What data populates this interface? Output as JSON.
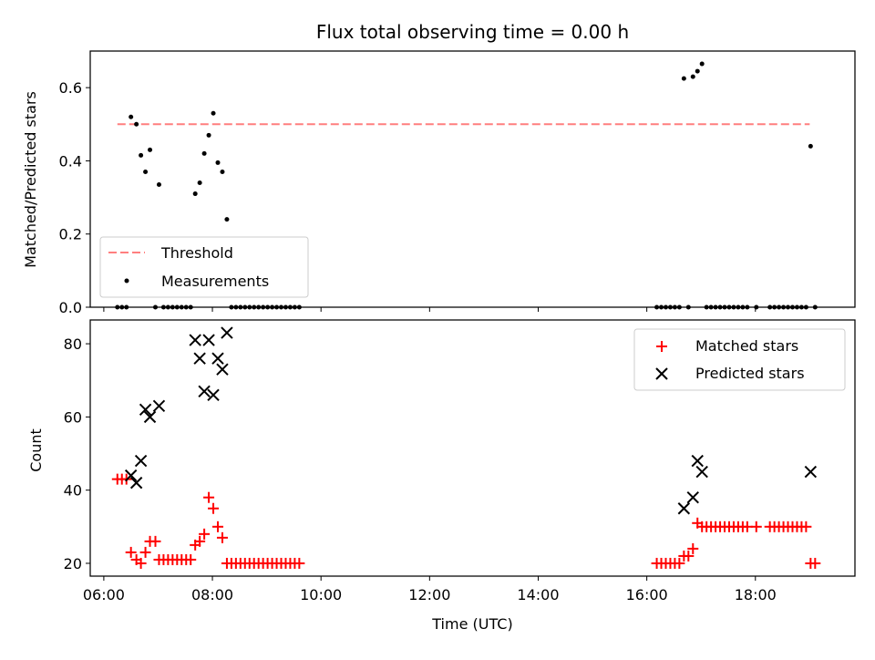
{
  "chart_data": [
    {
      "type": "scatter",
      "title": "Flux total observing time = 0.00 h",
      "xlabel": "",
      "ylabel": "Matched/Predicted stars",
      "xlim": [
        "05:45",
        "19:50"
      ],
      "ylim": [
        0,
        0.7
      ],
      "yticks": [
        "0.0",
        "0.2",
        "0.4",
        "0.6"
      ],
      "legend": {
        "placement": "lower-left",
        "entries": [
          "Threshold",
          "Measurements"
        ]
      },
      "threshold": {
        "name": "Threshold",
        "value": 0.5,
        "x_range": [
          "06:15",
          "19:00"
        ],
        "color": "#ff7f7f"
      },
      "series": [
        {
          "name": "Measurements",
          "color": "#000000",
          "points": [
            [
              "06:15",
              0
            ],
            [
              "06:20",
              0
            ],
            [
              "06:25",
              0
            ],
            [
              "06:30",
              0.52
            ],
            [
              "06:36",
              0.5
            ],
            [
              "06:41",
              0.415
            ],
            [
              "06:46",
              0.37
            ],
            [
              "06:51",
              0.43
            ],
            [
              "06:57",
              0
            ],
            [
              "07:01",
              0.335
            ],
            [
              "07:06",
              0
            ],
            [
              "07:11",
              0
            ],
            [
              "07:16",
              0
            ],
            [
              "07:21",
              0
            ],
            [
              "07:26",
              0
            ],
            [
              "07:31",
              0
            ],
            [
              "07:36",
              0
            ],
            [
              "07:41",
              0.31
            ],
            [
              "07:46",
              0.34
            ],
            [
              "07:51",
              0.42
            ],
            [
              "07:56",
              0.47
            ],
            [
              "08:01",
              0.53
            ],
            [
              "08:06",
              0.395
            ],
            [
              "08:11",
              0.37
            ],
            [
              "08:16",
              0.24
            ],
            [
              "08:21",
              0
            ],
            [
              "08:26",
              0
            ],
            [
              "08:31",
              0
            ],
            [
              "08:36",
              0
            ],
            [
              "08:41",
              0
            ],
            [
              "08:46",
              0
            ],
            [
              "08:51",
              0
            ],
            [
              "08:56",
              0
            ],
            [
              "09:01",
              0
            ],
            [
              "09:06",
              0
            ],
            [
              "09:11",
              0
            ],
            [
              "09:16",
              0
            ],
            [
              "09:21",
              0
            ],
            [
              "09:26",
              0
            ],
            [
              "09:31",
              0
            ],
            [
              "09:36",
              0
            ],
            [
              "16:11",
              0
            ],
            [
              "16:16",
              0
            ],
            [
              "16:21",
              0
            ],
            [
              "16:26",
              0
            ],
            [
              "16:31",
              0
            ],
            [
              "16:36",
              0
            ],
            [
              "16:41",
              0.625
            ],
            [
              "16:46",
              0
            ],
            [
              "16:51",
              0.63
            ],
            [
              "16:56",
              0.645
            ],
            [
              "17:01",
              0.665
            ],
            [
              "17:06",
              0
            ],
            [
              "17:11",
              0
            ],
            [
              "17:16",
              0
            ],
            [
              "17:21",
              0
            ],
            [
              "17:26",
              0
            ],
            [
              "17:31",
              0
            ],
            [
              "17:36",
              0
            ],
            [
              "17:41",
              0
            ],
            [
              "17:46",
              0
            ],
            [
              "17:51",
              0
            ],
            [
              "18:01",
              0
            ],
            [
              "18:16",
              0
            ],
            [
              "18:21",
              0
            ],
            [
              "18:26",
              0
            ],
            [
              "18:31",
              0
            ],
            [
              "18:36",
              0
            ],
            [
              "18:41",
              0
            ],
            [
              "18:46",
              0
            ],
            [
              "18:51",
              0
            ],
            [
              "18:56",
              0
            ],
            [
              "19:01",
              0.44
            ],
            [
              "19:06",
              0
            ]
          ]
        }
      ]
    },
    {
      "type": "scatter",
      "title": "",
      "xlabel": "Time (UTC)",
      "ylabel": "Count",
      "xlim": [
        "05:45",
        "19:50"
      ],
      "ylim": [
        16.5,
        86.5
      ],
      "xticks": [
        "06:00",
        "08:00",
        "10:00",
        "12:00",
        "14:00",
        "16:00",
        "18:00"
      ],
      "yticks": [
        "20",
        "40",
        "60",
        "80"
      ],
      "legend": {
        "placement": "upper-right",
        "entries": [
          "Matched stars",
          "Predicted stars"
        ]
      },
      "series": [
        {
          "name": "Matched stars",
          "marker": "plus",
          "color": "#ff0000",
          "points": [
            [
              "06:15",
              43
            ],
            [
              "06:20",
              43
            ],
            [
              "06:25",
              43
            ],
            [
              "06:30",
              23
            ],
            [
              "06:36",
              21
            ],
            [
              "06:41",
              20
            ],
            [
              "06:46",
              23
            ],
            [
              "06:51",
              26
            ],
            [
              "06:57",
              26
            ],
            [
              "07:01",
              21
            ],
            [
              "07:06",
              21
            ],
            [
              "07:11",
              21
            ],
            [
              "07:16",
              21
            ],
            [
              "07:21",
              21
            ],
            [
              "07:26",
              21
            ],
            [
              "07:31",
              21
            ],
            [
              "07:36",
              21
            ],
            [
              "07:41",
              25
            ],
            [
              "07:46",
              26
            ],
            [
              "07:51",
              28
            ],
            [
              "07:56",
              38
            ],
            [
              "08:01",
              35
            ],
            [
              "08:06",
              30
            ],
            [
              "08:11",
              27
            ],
            [
              "08:16",
              20
            ],
            [
              "08:21",
              20
            ],
            [
              "08:26",
              20
            ],
            [
              "08:31",
              20
            ],
            [
              "08:36",
              20
            ],
            [
              "08:41",
              20
            ],
            [
              "08:46",
              20
            ],
            [
              "08:51",
              20
            ],
            [
              "08:56",
              20
            ],
            [
              "09:01",
              20
            ],
            [
              "09:06",
              20
            ],
            [
              "09:11",
              20
            ],
            [
              "09:16",
              20
            ],
            [
              "09:21",
              20
            ],
            [
              "09:26",
              20
            ],
            [
              "09:31",
              20
            ],
            [
              "09:36",
              20
            ],
            [
              "16:11",
              20
            ],
            [
              "16:16",
              20
            ],
            [
              "16:21",
              20
            ],
            [
              "16:26",
              20
            ],
            [
              "16:31",
              20
            ],
            [
              "16:36",
              20
            ],
            [
              "16:41",
              22
            ],
            [
              "16:46",
              22
            ],
            [
              "16:51",
              24
            ],
            [
              "16:56",
              31
            ],
            [
              "17:01",
              30
            ],
            [
              "17:06",
              30
            ],
            [
              "17:11",
              30
            ],
            [
              "17:16",
              30
            ],
            [
              "17:21",
              30
            ],
            [
              "17:26",
              30
            ],
            [
              "17:31",
              30
            ],
            [
              "17:36",
              30
            ],
            [
              "17:41",
              30
            ],
            [
              "17:46",
              30
            ],
            [
              "17:51",
              30
            ],
            [
              "18:01",
              30
            ],
            [
              "18:16",
              30
            ],
            [
              "18:21",
              30
            ],
            [
              "18:26",
              30
            ],
            [
              "18:31",
              30
            ],
            [
              "18:36",
              30
            ],
            [
              "18:41",
              30
            ],
            [
              "18:46",
              30
            ],
            [
              "18:51",
              30
            ],
            [
              "18:56",
              30
            ],
            [
              "19:01",
              20
            ],
            [
              "19:06",
              20
            ]
          ]
        },
        {
          "name": "Predicted stars",
          "marker": "x",
          "color": "#000000",
          "points": [
            [
              "06:30",
              44
            ],
            [
              "06:36",
              42
            ],
            [
              "06:41",
              48
            ],
            [
              "06:46",
              62
            ],
            [
              "06:51",
              60
            ],
            [
              "07:01",
              63
            ],
            [
              "07:41",
              81
            ],
            [
              "07:46",
              76
            ],
            [
              "07:51",
              67
            ],
            [
              "07:56",
              81
            ],
            [
              "08:01",
              66
            ],
            [
              "08:06",
              76
            ],
            [
              "08:11",
              73
            ],
            [
              "08:16",
              83
            ],
            [
              "16:41",
              35
            ],
            [
              "16:51",
              38
            ],
            [
              "16:56",
              48
            ],
            [
              "17:01",
              45
            ],
            [
              "19:01",
              45
            ]
          ]
        }
      ]
    }
  ]
}
